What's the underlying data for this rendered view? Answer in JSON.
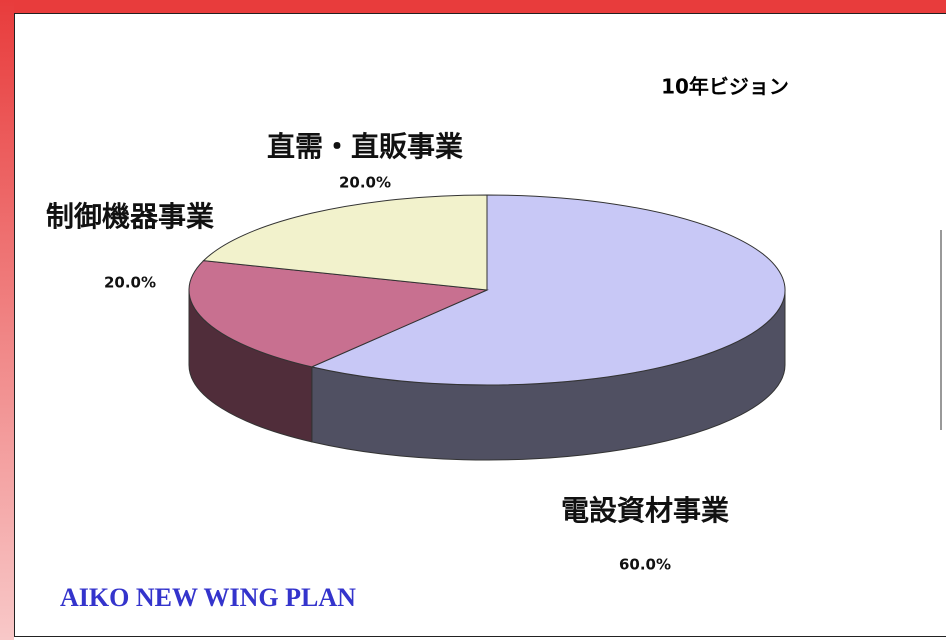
{
  "chart_data": {
    "type": "pie",
    "title": "10年ビジョン",
    "categories": [
      "電設資材事業",
      "制御機器事業",
      "直需・直販事業"
    ],
    "values": [
      60,
      20,
      20
    ],
    "value_labels": [
      "60.0%",
      "20.0%",
      "20.0%"
    ],
    "colors": [
      "#c8c8f6",
      "#c87090",
      "#f2f2cc"
    ],
    "annotation": "AIKO NEW WING PLAN"
  }
}
